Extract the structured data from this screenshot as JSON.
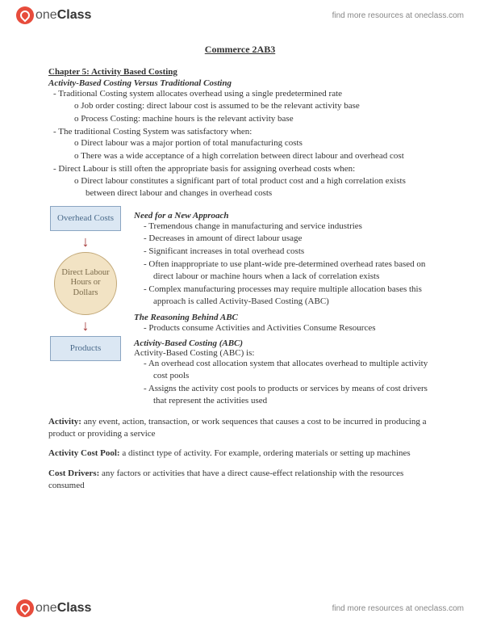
{
  "brand": {
    "name_part1": "one",
    "name_part2": "Class",
    "header_link": "find more resources at oneclass.com",
    "footer_link": "find more resources at oneclass.com"
  },
  "doc": {
    "title": "Commerce 2AB3",
    "chapter": "Chapter 5: Activity Based Costing",
    "section1": "Activity-Based Costing Versus Traditional Costing",
    "b1": "Traditional Costing system allocates overhead using a single predetermined rate",
    "b1a": "Job order costing: direct labour cost is assumed to be the relevant activity base",
    "b1b": "Process Costing: machine hours is the relevant activity base",
    "b2": "The traditional Costing System was satisfactory when:",
    "b2a": "Direct labour was a major portion of total manufacturing costs",
    "b2b": "There was a wide acceptance of a high correlation between direct labour and overhead cost",
    "b3": "Direct Labour is still often the appropriate basis for assigning overhead costs when:",
    "b3a": "Direct labour constitutes a significant part of total product cost and a high correlation exists between direct labour and changes in overhead costs",
    "diagram": {
      "box1": "Overhead Costs",
      "circle": "Direct Labour Hours or Dollars",
      "box2": "Products"
    },
    "need_h": "Need for a New Approach",
    "need1": "Tremendous change in manufacturing and service industries",
    "need2": "Decreases in amount of direct labour usage",
    "need3": "Significant increases in total overhead costs",
    "need4": "Often inappropriate to use plant-wide pre-determined overhead rates based on direct labour or machine hours when a lack of correlation exists",
    "need5": "Complex manufacturing processes may require multiple allocation bases this approach is called Activity-Based Costing (ABC)",
    "reason_h": "The Reasoning Behind ABC",
    "reason1": "Products consume Activities and Activities Consume Resources",
    "abc_h": "Activity-Based Costing (ABC)",
    "abc_intro": "Activity-Based Costing (ABC) is:",
    "abc1": "An overhead cost allocation system that allocates overhead to multiple activity cost pools",
    "abc2": "Assigns the activity cost pools to products or services by means of cost drivers that represent the activities used",
    "activity_term": "Activity:",
    "activity_def": " any event, action, transaction, or work sequences that causes a cost to be incurred in producing a product or providing a service",
    "pool_term": "Activity Cost Pool:",
    "pool_def": " a distinct type of activity. For example, ordering materials or setting up machines",
    "drivers_term": "Cost Drivers:",
    "drivers_def": " any factors or activities that have a direct cause-effect relationship with the resources consumed"
  },
  "style": {
    "bg": "#ffffff",
    "text_color": "#333333",
    "box_bg": "#dbe7f3",
    "box_border": "#8aa5c2",
    "box_text": "#4a6a8a",
    "circle_bg": "#f2e3c4",
    "circle_border": "#c2a878",
    "circle_text": "#7a6a4a",
    "arrow_color": "#a03030",
    "logo_color": "#e74c3c"
  }
}
